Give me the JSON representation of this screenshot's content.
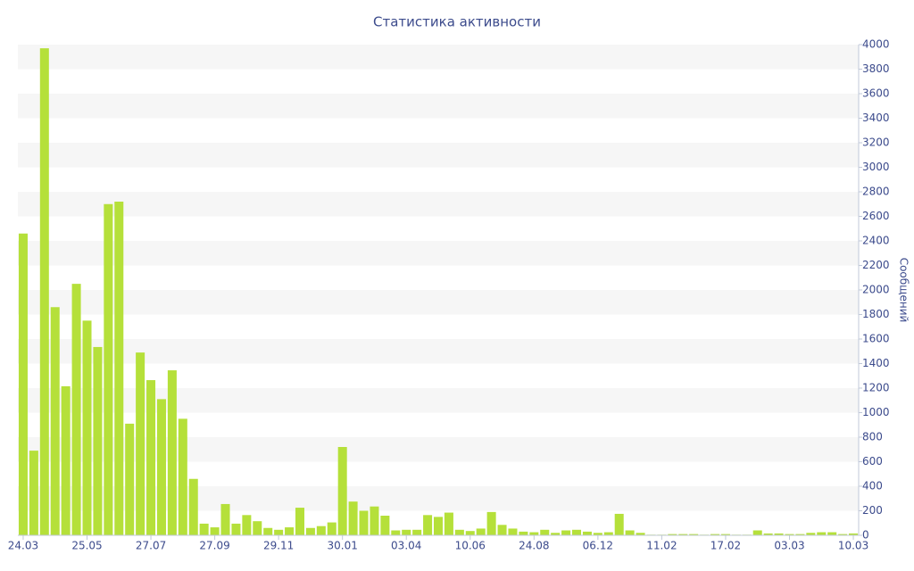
{
  "chart_data": {
    "type": "bar",
    "title": "Статистика активности",
    "y_label": "Сообщений",
    "categories": [
      "24.03",
      null,
      null,
      null,
      null,
      null,
      "25.05",
      null,
      null,
      null,
      null,
      null,
      "27.07",
      null,
      null,
      null,
      null,
      null,
      "27.09",
      null,
      null,
      null,
      null,
      null,
      "29.11",
      null,
      null,
      null,
      null,
      null,
      "30.01",
      null,
      null,
      null,
      null,
      null,
      "03.04",
      null,
      null,
      null,
      null,
      null,
      "10.06",
      null,
      null,
      null,
      null,
      null,
      "24.08",
      null,
      null,
      null,
      null,
      null,
      "06.12",
      null,
      null,
      null,
      null,
      null,
      "11.02",
      null,
      null,
      null,
      null,
      null,
      "17.02",
      null,
      null,
      null,
      null,
      null,
      "03.03",
      null,
      null,
      null,
      null,
      null,
      "10.03"
    ],
    "values": [
      2460,
      690,
      3970,
      1860,
      1215,
      2050,
      1750,
      1535,
      2700,
      2720,
      910,
      1490,
      1265,
      1110,
      1345,
      950,
      460,
      95,
      65,
      255,
      95,
      165,
      115,
      60,
      45,
      65,
      225,
      60,
      75,
      105,
      720,
      275,
      200,
      235,
      160,
      40,
      45,
      45,
      165,
      150,
      185,
      45,
      35,
      55,
      190,
      85,
      55,
      30,
      25,
      45,
      20,
      40,
      45,
      30,
      20,
      25,
      175,
      40,
      20,
      5,
      5,
      10,
      10,
      10,
      5,
      10,
      10,
      5,
      5,
      40,
      15,
      15,
      10,
      10,
      20,
      25,
      25,
      10,
      15
    ],
    "color": "#b5e03a",
    "ylim": [
      0,
      4000
    ],
    "yticks": [
      0,
      200,
      400,
      600,
      800,
      1000,
      1200,
      1400,
      1600,
      1800,
      2000,
      2200,
      2400,
      2600,
      2800,
      3000,
      3200,
      3400,
      3600,
      3800,
      4000
    ],
    "grid": true
  }
}
